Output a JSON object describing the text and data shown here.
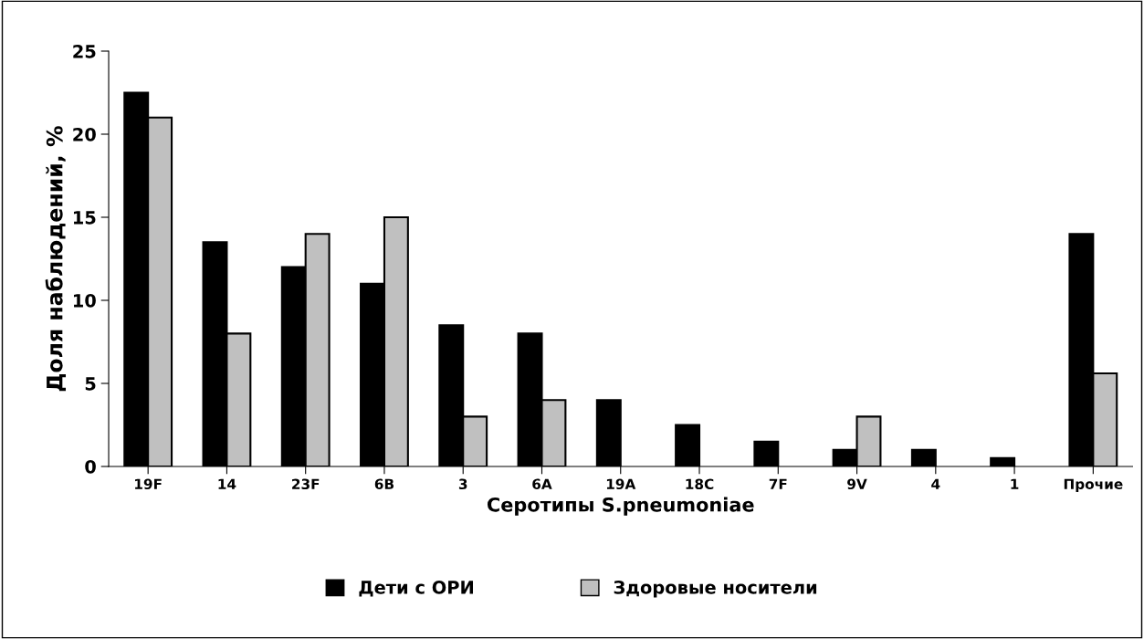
{
  "chart_data": {
    "type": "bar",
    "xlabel": "Серотипы S.pneumoniae",
    "ylabel": "Доля наблюдений, %",
    "categories": [
      "19F",
      "14",
      "23F",
      "6B",
      "3",
      "6A",
      "19A",
      "18C",
      "7F",
      "9V",
      "4",
      "1",
      "Прочие"
    ],
    "series": [
      {
        "name": "Дети с ОРИ",
        "color": "#000000",
        "values": [
          22.5,
          13.5,
          12,
          11,
          8.5,
          8,
          4,
          2.5,
          1.5,
          1,
          1,
          0.5,
          14
        ]
      },
      {
        "name": "Здоровые носители",
        "color": "#c0c0c0",
        "values": [
          21,
          8,
          14,
          15,
          3,
          4,
          null,
          null,
          null,
          3,
          null,
          null,
          5.6
        ]
      }
    ],
    "ylim": [
      0,
      25
    ],
    "yticks": [
      0,
      5,
      10,
      15,
      20,
      25
    ],
    "grid": false,
    "legend": "bottom"
  }
}
